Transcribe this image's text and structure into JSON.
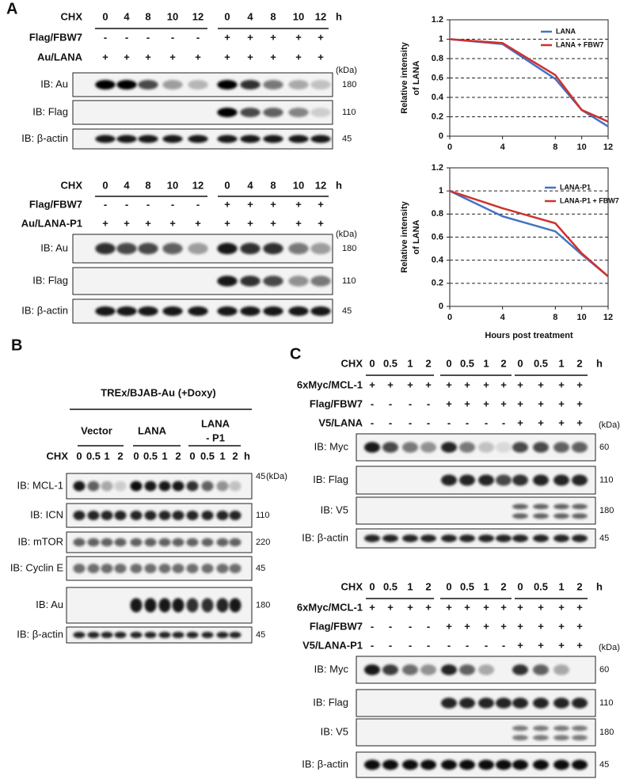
{
  "panel_labels": [
    "A",
    "B",
    "C"
  ],
  "blots": [
    {
      "kda": "(kDa)",
      "rows": [
        {
          "label": "CHX",
          "cells": [
            "0",
            "4",
            "8",
            "10",
            "12",
            "0",
            "4",
            "8",
            "10",
            "12"
          ],
          "unit": "h"
        },
        {
          "label": "Flag/FBW7",
          "cells": [
            "-",
            "-",
            "-",
            "-",
            "-",
            "+",
            "+",
            "+",
            "+",
            "+"
          ]
        },
        {
          "label": "Au/LANA",
          "cells": [
            "+",
            "+",
            "+",
            "+",
            "+",
            "+",
            "+",
            "+",
            "+",
            "+"
          ]
        }
      ],
      "strips": [
        {
          "label": "IB: Au",
          "size": "180"
        },
        {
          "label": "IB: Flag",
          "size": "110"
        },
        {
          "label": "IB: β-actin",
          "size": "45"
        }
      ]
    },
    {
      "kda": "(kDa)",
      "rows": [
        {
          "label": "CHX",
          "cells": [
            "0",
            "4",
            "8",
            "10",
            "12",
            "0",
            "4",
            "8",
            "10",
            "12"
          ],
          "unit": "h"
        },
        {
          "label": "Flag/FBW7",
          "cells": [
            "-",
            "-",
            "-",
            "-",
            "-",
            "+",
            "+",
            "+",
            "+",
            "+"
          ]
        },
        {
          "label": "Au/LANA-P1",
          "cells": [
            "+",
            "+",
            "+",
            "+",
            "+",
            "+",
            "+",
            "+",
            "+",
            "+"
          ]
        }
      ],
      "strips": [
        {
          "label": "IB: Au",
          "size": "180"
        },
        {
          "label": "IB: Flag",
          "size": "110"
        },
        {
          "label": "IB: β-actin",
          "size": "45"
        }
      ]
    },
    {
      "kda": "(kDa)",
      "header": "TREx/BJAB-Au (+Doxy)",
      "groups": [
        [
          "Vector"
        ],
        [
          "LANA"
        ],
        [
          "LANA",
          "- P1"
        ]
      ],
      "rows": [
        {
          "label": "CHX",
          "cells": [
            "0",
            "0.5",
            "1",
            "2",
            "0",
            "0.5",
            "1",
            "2",
            "0",
            "0.5",
            "1",
            "2"
          ],
          "unit": "h"
        }
      ],
      "strips": [
        {
          "label": "IB: MCL-1",
          "size": "45"
        },
        {
          "label": "IB: ICN",
          "size": "110"
        },
        {
          "label": "IB: mTOR",
          "size": "220"
        },
        {
          "label": "IB: Cyclin E",
          "size": "45"
        },
        {
          "label": "IB: Au",
          "size": "180"
        },
        {
          "label": "IB: β-actin",
          "size": "45"
        }
      ]
    },
    {
      "kda": "(kDa)",
      "rows": [
        {
          "label": "CHX",
          "cells": [
            "0",
            "0.5",
            "1",
            "2",
            "0",
            "0.5",
            "1",
            "2",
            "0",
            "0.5",
            "1",
            "2"
          ],
          "unit": "h"
        },
        {
          "label": "6xMyc/MCL-1",
          "cells": [
            "+",
            "+",
            "+",
            "+",
            "+",
            "+",
            "+",
            "+",
            "+",
            "+",
            "+",
            "+"
          ]
        },
        {
          "label": "Flag/FBW7",
          "cells": [
            "-",
            "-",
            "-",
            "-",
            "+",
            "+",
            "+",
            "+",
            "+",
            "+",
            "+",
            "+"
          ]
        },
        {
          "label": "V5/LANA",
          "cells": [
            "-",
            "-",
            "-",
            "-",
            "-",
            "-",
            "-",
            "-",
            "+",
            "+",
            "+",
            "+"
          ]
        }
      ],
      "strips": [
        {
          "label": "IB: Myc",
          "size": "60"
        },
        {
          "label": "IB: Flag",
          "size": "110"
        },
        {
          "label": "IB: V5",
          "size": "180"
        },
        {
          "label": "IB: β-actin",
          "size": "45"
        }
      ]
    },
    {
      "kda": "(kDa)",
      "rows": [
        {
          "label": "CHX",
          "cells": [
            "0",
            "0.5",
            "1",
            "2",
            "0",
            "0.5",
            "1",
            "2",
            "0",
            "0.5",
            "1",
            "2"
          ],
          "unit": "h"
        },
        {
          "label": "6xMyc/MCL-1",
          "cells": [
            "+",
            "+",
            "+",
            "+",
            "+",
            "+",
            "+",
            "+",
            "+",
            "+",
            "+",
            "+"
          ]
        },
        {
          "label": "Flag/FBW7",
          "cells": [
            "-",
            "-",
            "-",
            "-",
            "+",
            "+",
            "+",
            "+",
            "+",
            "+",
            "+",
            "+"
          ]
        },
        {
          "label": "V5/LANA-P1",
          "cells": [
            "-",
            "-",
            "-",
            "-",
            "-",
            "-",
            "-",
            "-",
            "+",
            "+",
            "+",
            "+"
          ]
        }
      ],
      "strips": [
        {
          "label": "IB: Myc",
          "size": "60"
        },
        {
          "label": "IB: Flag",
          "size": "110"
        },
        {
          "label": "IB: V5",
          "size": "180"
        },
        {
          "label": "IB: β-actin",
          "size": "45"
        }
      ]
    }
  ],
  "chart_data": [
    {
      "type": "line",
      "ylabel": [
        "Relative intensity",
        "of LANA"
      ],
      "x": [
        0,
        4,
        8,
        10,
        12
      ],
      "xlim": [
        0,
        12
      ],
      "xticks": [
        0,
        4,
        8,
        10,
        12
      ],
      "ylim": [
        0,
        1.2
      ],
      "yticks": [
        0,
        0.2,
        0.4,
        0.6,
        0.8,
        1,
        1.2
      ],
      "grid": true,
      "legend": "upper right",
      "series": [
        {
          "name": "LANA",
          "color": "#4472c4",
          "values": [
            1,
            0.95,
            0.59,
            0.27,
            0.1
          ]
        },
        {
          "name": "LANA  + FBW7",
          "color": "#d0312d",
          "values": [
            1,
            0.96,
            0.63,
            0.27,
            0.15
          ]
        }
      ]
    },
    {
      "type": "line",
      "ylabel": [
        "Relative intensity",
        "of LANA"
      ],
      "xlabel": "Hours post treatment",
      "x": [
        0,
        4,
        8,
        10,
        12
      ],
      "xlim": [
        0,
        12
      ],
      "xticks": [
        0,
        4,
        8,
        10,
        12
      ],
      "ylim": [
        0,
        1.2
      ],
      "yticks": [
        0,
        0.2,
        0.4,
        0.6,
        0.8,
        1,
        1.2
      ],
      "grid": true,
      "legend": "upper right",
      "series": [
        {
          "name": "LANA-P1",
          "color": "#4472c4",
          "values": [
            1,
            0.78,
            0.65,
            0.45,
            0.26
          ]
        },
        {
          "name": "LANA-P1  + FBW7",
          "color": "#d0312d",
          "values": [
            1,
            0.85,
            0.72,
            0.46,
            0.26
          ]
        }
      ]
    }
  ]
}
